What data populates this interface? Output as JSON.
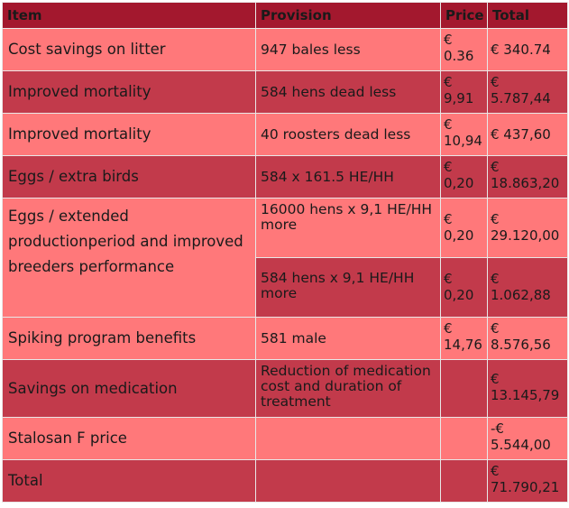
{
  "header": {
    "item": "Item",
    "provision": "Provision",
    "price": "Price",
    "total": "Total"
  },
  "rows": [
    {
      "item": "Cost savings on litter",
      "provision": "947 bales less",
      "price": "€\n0.36",
      "total": "€ 340.74"
    },
    {
      "item": "Improved mortality",
      "provision": "584 hens dead less",
      "price": "€\n9,91",
      "total": "€\n5.787,44"
    },
    {
      "item": "Improved mortality",
      "provision": "40 roosters dead less",
      "price": "€\n10,94",
      "total": "€ 437,60"
    },
    {
      "item": "Eggs / extra birds",
      "provision": "584 x 161.5 HE/HH",
      "price": "€\n0,20",
      "total": "€\n18.863,20"
    },
    {
      "item": "Eggs / extended productionperiod and improved breeders performance",
      "provision": "16000 hens x 9,1 HE/HH more",
      "price": "€\n0,20",
      "total": "€\n29.120,00"
    },
    {
      "item": "",
      "provision": "584 hens x 9,1 HE/HH more",
      "price": "€\n0,20",
      "total": "€\n1.062,88"
    },
    {
      "item": "Spiking program benefits",
      "provision": "581 male",
      "price": "€\n14,76",
      "total": "€\n8.576,56"
    },
    {
      "item": "Savings on medication",
      "provision": "Reduction of medication cost and duration of treatment",
      "price": "",
      "total": "€\n13.145,79"
    },
    {
      "item": "Stalosan F price",
      "provision": "",
      "price": "",
      "total": "-€\n5.544,00"
    },
    {
      "item": "Total",
      "provision": "",
      "price": "",
      "total": "€\n71.790,21"
    }
  ]
}
